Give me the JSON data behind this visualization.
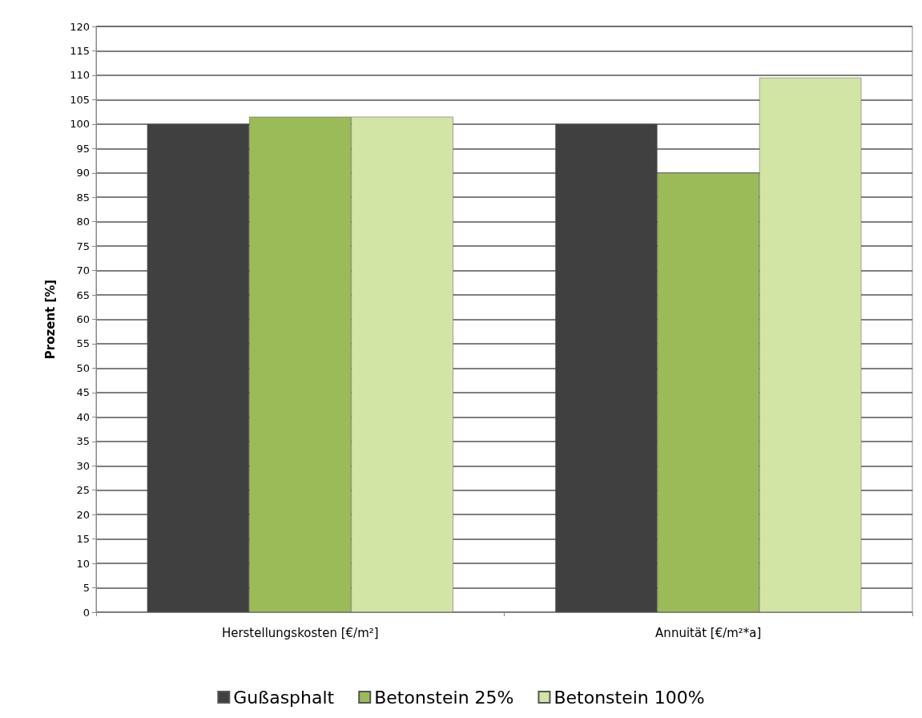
{
  "chart_data": {
    "type": "bar",
    "ylabel": "Prozent [%]",
    "categories": [
      "Herstellungskosten [€/m²]",
      "Annuität [€/m²*a]"
    ],
    "series": [
      {
        "name": "Gußasphalt",
        "color": "#404040",
        "values": [
          100,
          100
        ]
      },
      {
        "name": "Betonstein 25%",
        "color": "#9bbb59",
        "values": [
          101.5,
          90
        ]
      },
      {
        "name": "Betonstein 100%",
        "color": "#d3e5a5",
        "values": [
          101.5,
          109.5
        ]
      }
    ],
    "ylim": [
      0,
      120
    ],
    "yticks": [
      0,
      5,
      10,
      15,
      20,
      25,
      30,
      35,
      40,
      45,
      50,
      55,
      60,
      65,
      70,
      75,
      80,
      85,
      90,
      95,
      100,
      105,
      110,
      115,
      120
    ],
    "grid": "y",
    "legend": "bottom"
  }
}
